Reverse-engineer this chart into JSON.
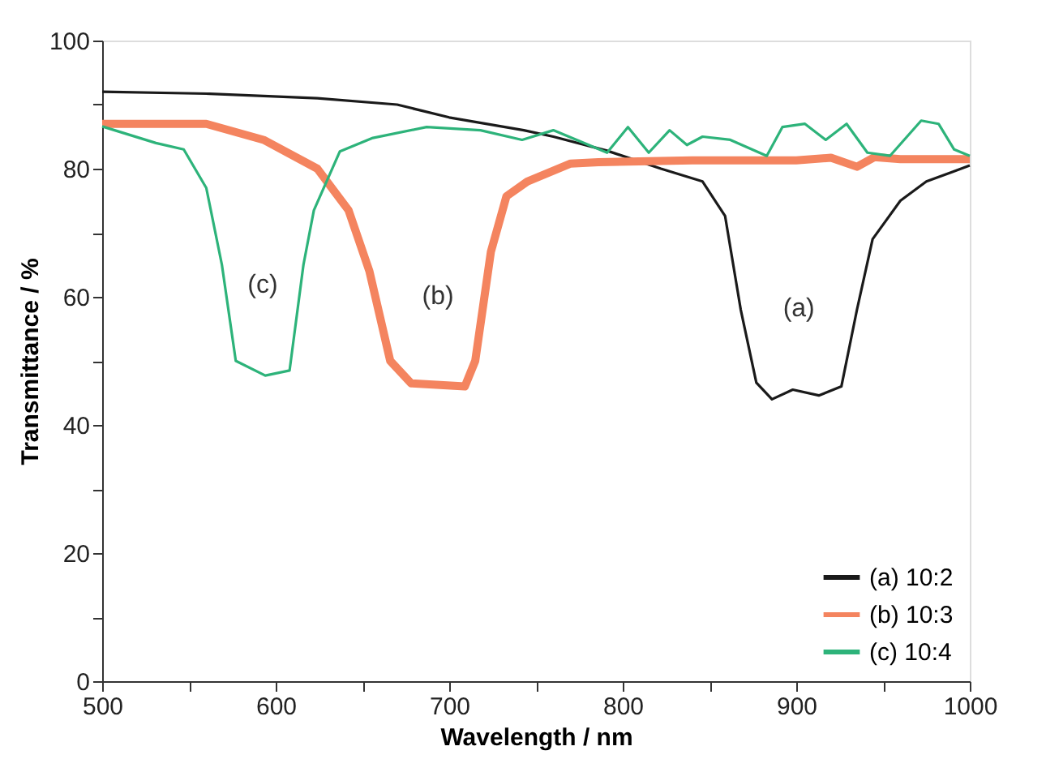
{
  "chart_data": {
    "type": "line",
    "xlabel": "Wavelength / nm",
    "ylabel": "Transmittance / %",
    "xlim": [
      500,
      1000
    ],
    "ylim": [
      0,
      100
    ],
    "xticks": [
      500,
      {
        "value": 550,
        "label": null
      },
      600,
      {
        "value": 650,
        "label": null
      },
      700,
      {
        "value": 750,
        "label": null
      },
      800,
      {
        "value": 850,
        "label": null
      },
      900,
      {
        "value": 950,
        "label": null
      },
      1000
    ],
    "yticks": [
      0,
      {
        "value": 10,
        "label": null
      },
      20,
      {
        "value": 30,
        "label": null
      },
      40,
      {
        "value": 50,
        "label": null
      },
      60,
      {
        "value": 70,
        "label": null
      },
      80,
      {
        "value": 90,
        "label": null
      },
      100
    ],
    "grid": false,
    "legend": "bottom right",
    "line_style": "solid",
    "marker": "none",
    "annotations": [
      "(c)",
      "(b)",
      "(a)"
    ],
    "series": [
      {
        "name": "(a) 10:2",
        "color": "#1a1a1a",
        "x": [
          500,
          562,
          624,
          670,
          700,
          743,
          760,
          791,
          822,
          846,
          859,
          868,
          877,
          886,
          898,
          913,
          926,
          935,
          944,
          960,
          975,
          990,
          1000
        ],
        "values": [
          92,
          91.7,
          91,
          90,
          88,
          86,
          85,
          82.8,
          80,
          78,
          72.6,
          58,
          46.6,
          44,
          45.5,
          44.6,
          46,
          58,
          69,
          75,
          78,
          79.5,
          80.5
        ]
      },
      {
        "name": "(b) 10:3",
        "color": "#f4845f",
        "x": [
          500,
          560,
          593,
          624,
          642,
          654,
          666,
          678,
          709,
          715,
          724,
          733,
          745,
          770,
          786,
          840,
          900,
          920,
          935,
          945,
          960,
          1000
        ],
        "values": [
          87,
          87,
          84.5,
          80,
          73.5,
          64,
          50,
          46.5,
          46,
          50,
          67,
          75.7,
          78,
          80.8,
          81,
          81.3,
          81.3,
          81.7,
          80.3,
          81.8,
          81.5,
          81.5
        ]
      },
      {
        "name": "(c) 10:4",
        "color": "#2db37a",
        "x": [
          500,
          531,
          547,
          560,
          569,
          577,
          594,
          608,
          616,
          622,
          637,
          656,
          687,
          718,
          742,
          760,
          791,
          803,
          815,
          827,
          837,
          846,
          862,
          883,
          892,
          905,
          917,
          929,
          941,
          954,
          972,
          982,
          991,
          1000
        ],
        "values": [
          86.6,
          84,
          83,
          77,
          65,
          50,
          47.7,
          48.5,
          65,
          73.5,
          82.7,
          84.8,
          86.5,
          86,
          84.5,
          86,
          82.5,
          86.5,
          82.5,
          86,
          83.7,
          85,
          84.5,
          82,
          86.5,
          87,
          84.5,
          87,
          82.5,
          82,
          87.5,
          87,
          83,
          82
        ]
      }
    ]
  }
}
